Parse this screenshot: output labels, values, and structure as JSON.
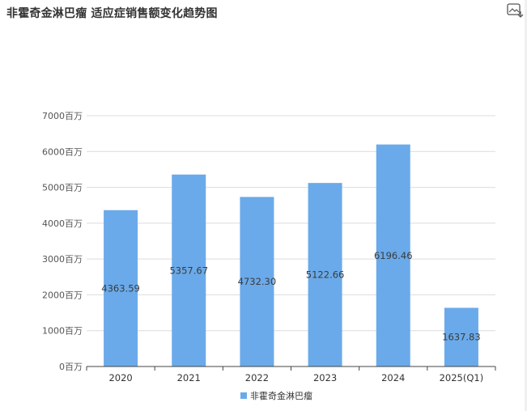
{
  "title": "非霍奇金淋巴瘤 适应症销售额变化趋势图",
  "toolbar": {
    "save_icon": "save-image-icon"
  },
  "colors": {
    "bar": "#6aaaea",
    "grid": "#dcdcdc",
    "axis": "#444444"
  },
  "chart_data": {
    "type": "bar",
    "categories": [
      "2020",
      "2021",
      "2022",
      "2023",
      "2024",
      "2025(Q1)"
    ],
    "series": [
      {
        "name": "非霍奇金淋巴瘤",
        "values": [
          4363.59,
          5357.67,
          4732.3,
          5122.66,
          6196.46,
          1637.83
        ]
      }
    ],
    "value_labels": [
      "4363.59",
      "5357.67",
      "4732.30",
      "5122.66",
      "6196.46",
      "1637.83"
    ],
    "ylim": [
      0,
      7000
    ],
    "yticks": [
      0,
      1000,
      2000,
      3000,
      4000,
      5000,
      6000,
      7000
    ],
    "ytick_labels": [
      "0百万",
      "1000百万",
      "2000百万",
      "3000百万",
      "4000百万",
      "5000百万",
      "6000百万",
      "7000百万"
    ],
    "grid": true,
    "legend_position": "bottom"
  }
}
